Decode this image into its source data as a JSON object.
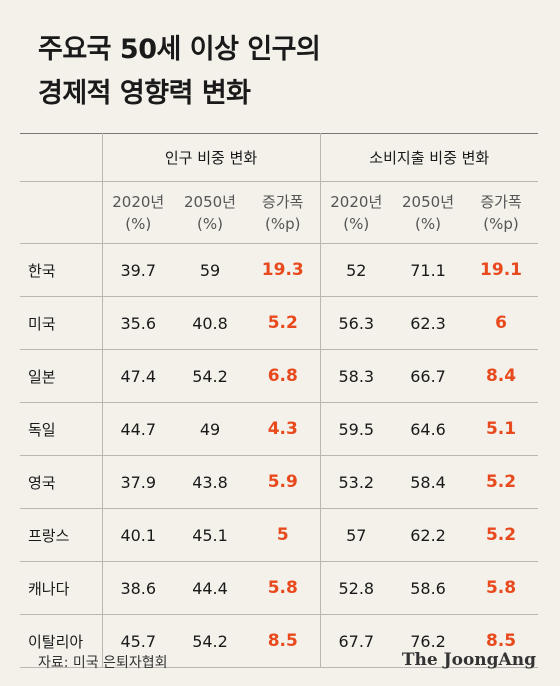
{
  "title": {
    "line1": "주요국 50세 이상 인구의",
    "line2": "경제적 영향력 변화"
  },
  "colors": {
    "background": "#f3f1ea",
    "increase": "#e8491d",
    "text": "#1a1a1a"
  },
  "chart_data": {
    "type": "table",
    "title": "주요국 50세 이상 인구의 경제적 영향력 변화",
    "groups": [
      "인구 비중 변화",
      "소비지출 비중 변화"
    ],
    "subheaders": [
      {
        "line1": "2020년",
        "line2": "(%)"
      },
      {
        "line1": "2050년",
        "line2": "(%)"
      },
      {
        "line1": "증가폭",
        "line2": "(%p)"
      },
      {
        "line1": "2020년",
        "line2": "(%)"
      },
      {
        "line1": "2050년",
        "line2": "(%)"
      },
      {
        "line1": "증가폭",
        "line2": "(%p)"
      }
    ],
    "rows": [
      {
        "country": "한국",
        "pop2020": "39.7",
        "pop2050": "59",
        "popInc": "19.3",
        "spend2020": "52",
        "spend2050": "71.1",
        "spendInc": "19.1"
      },
      {
        "country": "미국",
        "pop2020": "35.6",
        "pop2050": "40.8",
        "popInc": "5.2",
        "spend2020": "56.3",
        "spend2050": "62.3",
        "spendInc": "6"
      },
      {
        "country": "일본",
        "pop2020": "47.4",
        "pop2050": "54.2",
        "popInc": "6.8",
        "spend2020": "58.3",
        "spend2050": "66.7",
        "spendInc": "8.4"
      },
      {
        "country": "독일",
        "pop2020": "44.7",
        "pop2050": "49",
        "popInc": "4.3",
        "spend2020": "59.5",
        "spend2050": "64.6",
        "spendInc": "5.1"
      },
      {
        "country": "영국",
        "pop2020": "37.9",
        "pop2050": "43.8",
        "popInc": "5.9",
        "spend2020": "53.2",
        "spend2050": "58.4",
        "spendInc": "5.2"
      },
      {
        "country": "프랑스",
        "pop2020": "40.1",
        "pop2050": "45.1",
        "popInc": "5",
        "spend2020": "57",
        "spend2050": "62.2",
        "spendInc": "5.2"
      },
      {
        "country": "캐나다",
        "pop2020": "38.6",
        "pop2050": "44.4",
        "popInc": "5.8",
        "spend2020": "52.8",
        "spend2050": "58.6",
        "spendInc": "5.8"
      },
      {
        "country": "이탈리아",
        "pop2020": "45.7",
        "pop2050": "54.2",
        "popInc": "8.5",
        "spend2020": "67.7",
        "spend2050": "76.2",
        "spendInc": "8.5"
      }
    ]
  },
  "footer": {
    "source": "자료: 미국 은퇴자협회",
    "brand": "The JoongAng"
  }
}
